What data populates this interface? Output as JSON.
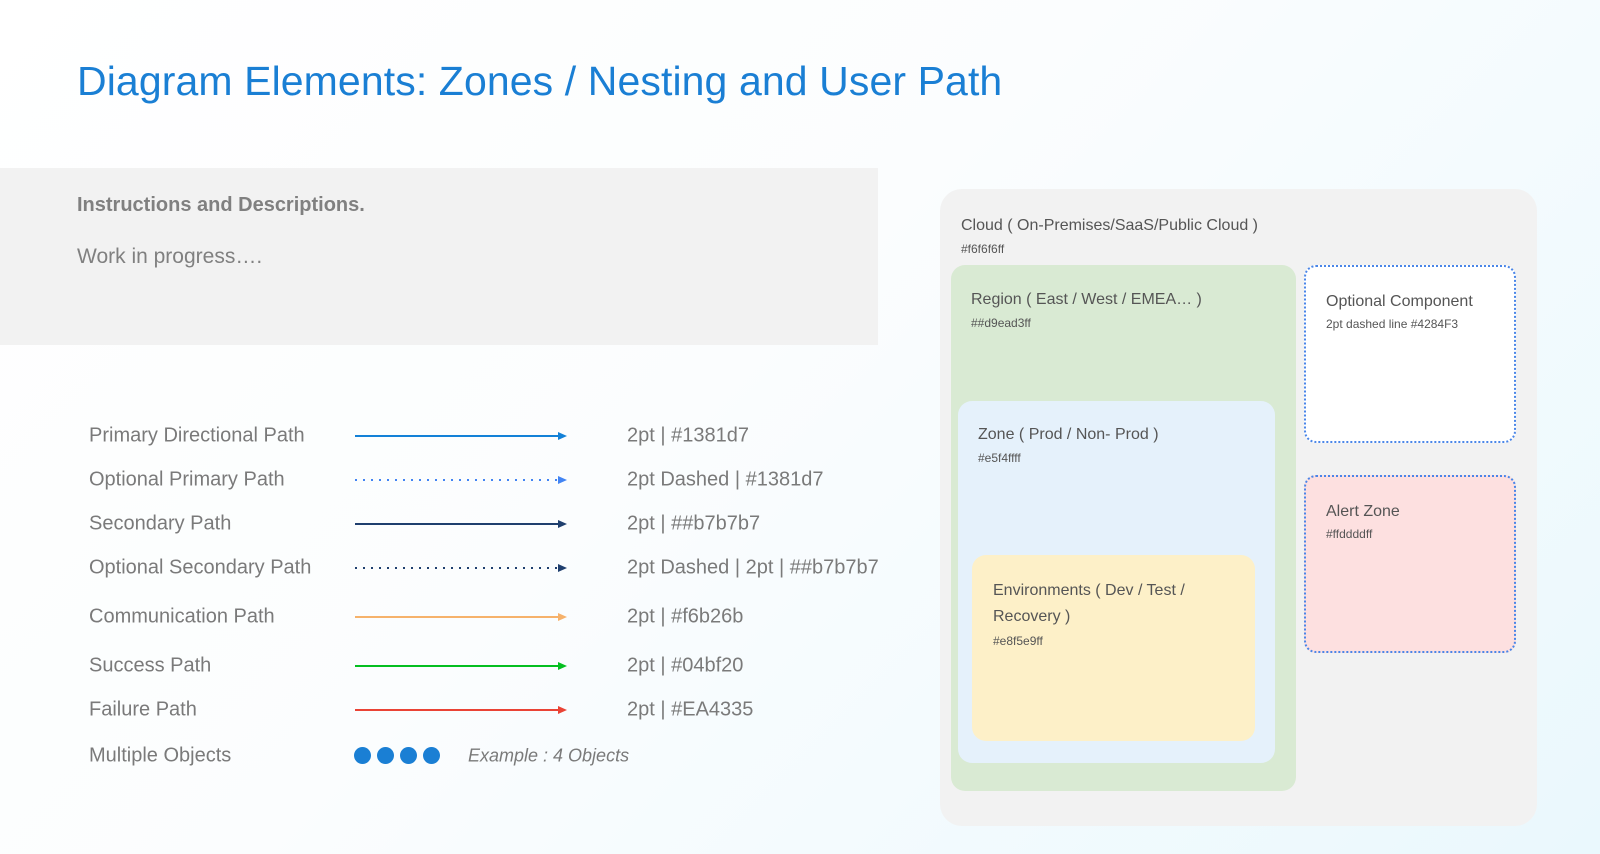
{
  "title": "Diagram Elements: Zones / Nesting and User Path",
  "instructions": {
    "heading": "Instructions and Descriptions.",
    "body": "Work in progress…."
  },
  "legend": [
    {
      "label": "Primary Directional Path",
      "desc": "2pt | #1381d7",
      "color": "#1381d7",
      "style": "solid"
    },
    {
      "label": "Optional Primary Path",
      "desc": "2pt Dashed | #1381d7",
      "color": "#4284f3",
      "style": "dotted"
    },
    {
      "label": "Secondary Path",
      "desc": "2pt | ##b7b7b7",
      "color": "#1f3f6e",
      "style": "solid"
    },
    {
      "label": "Optional Secondary Path",
      "desc": "2pt Dashed | 2pt | ##b7b7b7",
      "color": "#1f3f6e",
      "style": "dotted"
    },
    {
      "label": "Communication Path",
      "desc": "2pt | #f6b26b",
      "color": "#f6b26b",
      "style": "solid"
    },
    {
      "label": "Success Path",
      "desc": "2pt | #04bf20",
      "color": "#04bf20",
      "style": "solid"
    },
    {
      "label": "Failure Path",
      "desc": "2pt | #EA4335",
      "color": "#ea4335",
      "style": "solid"
    }
  ],
  "multiple_objects": {
    "label": "Multiple Objects",
    "count": 4,
    "color": "#1a7fd4",
    "example": "Example : 4 Objects"
  },
  "zones": {
    "cloud": {
      "title": "Cloud ( On-Premises/SaaS/Public Cloud )",
      "sub": "#f6f6f6ff"
    },
    "region": {
      "title": "Region ( East / West / EMEA… )",
      "sub": "##d9ead3ff"
    },
    "zone": {
      "title": "Zone ( Prod / Non- Prod )",
      "sub": "#e5f4ffff"
    },
    "environments": {
      "title_line1": "Environments ( Dev / Test /",
      "title_line2": "Recovery )",
      "sub": "#e8f5e9ff"
    },
    "optional": {
      "title": "Optional Component",
      "sub": "2pt dashed line #4284F3"
    },
    "alert": {
      "title": "Alert Zone",
      "sub": "#ffddddff"
    }
  }
}
